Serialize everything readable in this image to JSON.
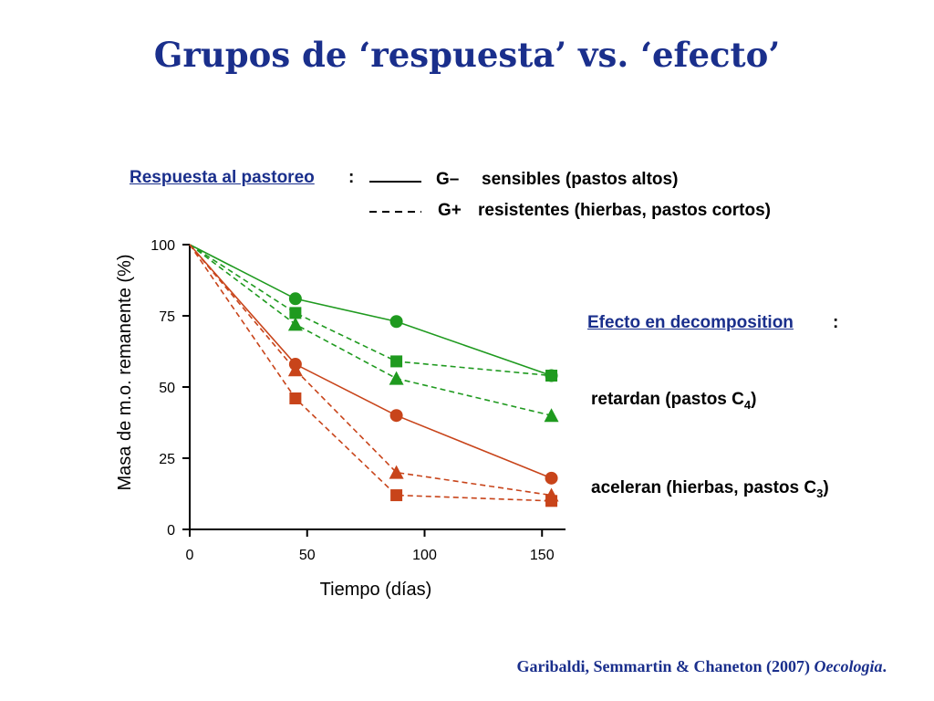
{
  "slide": {
    "title": "Grupos de ‘respuesta’ vs. ‘efecto’",
    "citation_authors": "Garibaldi, Semmartin & Chaneton (2007)",
    "citation_journal": "Oecologia",
    "citation_end": "."
  },
  "legend": {
    "heading": "Respuesta al pastoreo",
    "heading_colon": ":",
    "solid_tag": "G–",
    "solid_label": "sensibles (pastos altos)",
    "dashed_tag": "G+",
    "dashed_label": "resistentes (hierbas, pastos cortos)"
  },
  "effect": {
    "heading": "Efecto en decomposition",
    "heading_colon": ":",
    "retard_label": "retardan (pastos C",
    "retard_sub": "4",
    "retard_close": ")",
    "accel_label": "aceleran (hierbas, pastos C",
    "accel_sub": "3",
    "accel_close": ")"
  },
  "colors": {
    "green": "#1f9a1f",
    "orange": "#c8441a",
    "title_blue": "#1a2f8c"
  },
  "chart_data": {
    "type": "line",
    "xlabel": "Tiempo (días)",
    "ylabel": "Masa de m.o. remanente (%)",
    "xlim": [
      0,
      160
    ],
    "ylim": [
      0,
      100
    ],
    "xticks": [
      0,
      50,
      100,
      150
    ],
    "yticks": [
      0,
      25,
      50,
      75,
      100
    ],
    "grid": false,
    "series": [
      {
        "group": "retardan",
        "color": "green",
        "line": "solid",
        "marker": "circle",
        "x": [
          0,
          45,
          88,
          154
        ],
        "y": [
          100,
          81,
          73,
          54
        ]
      },
      {
        "group": "retardan",
        "color": "green",
        "line": "dashed",
        "marker": "square",
        "x": [
          0,
          45,
          88,
          154
        ],
        "y": [
          100,
          76,
          59,
          54
        ]
      },
      {
        "group": "retardan",
        "color": "green",
        "line": "dashed",
        "marker": "triangle",
        "x": [
          0,
          45,
          88,
          154
        ],
        "y": [
          100,
          72,
          53,
          40
        ]
      },
      {
        "group": "aceleran",
        "color": "orange",
        "line": "solid",
        "marker": "circle",
        "x": [
          0,
          45,
          88,
          154
        ],
        "y": [
          100,
          58,
          40,
          18
        ]
      },
      {
        "group": "aceleran",
        "color": "orange",
        "line": "dashed",
        "marker": "triangle",
        "x": [
          0,
          45,
          88,
          154
        ],
        "y": [
          100,
          56,
          20,
          12
        ]
      },
      {
        "group": "aceleran",
        "color": "orange",
        "line": "dashed",
        "marker": "square",
        "x": [
          0,
          45,
          88,
          154
        ],
        "y": [
          100,
          46,
          12,
          10
        ]
      }
    ]
  }
}
